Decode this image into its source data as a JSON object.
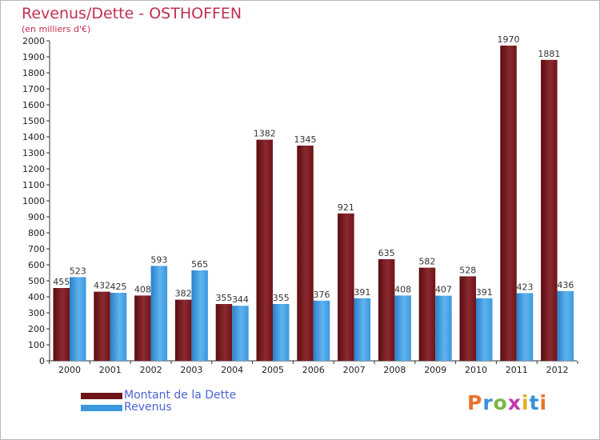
{
  "chart_data": {
    "type": "bar",
    "title": "Revenus/Dette - OSTHOFFEN",
    "subtitle": "(en milliers d'€)",
    "categories": [
      "2000",
      "2001",
      "2002",
      "2003",
      "2004",
      "2005",
      "2006",
      "2007",
      "2008",
      "2009",
      "2010",
      "2011",
      "2012"
    ],
    "series": [
      {
        "name": "Montant de la Dette",
        "color": "#6e1419",
        "values": [
          455,
          432,
          408,
          382,
          355,
          1382,
          1345,
          921,
          635,
          582,
          528,
          1970,
          1881
        ]
      },
      {
        "name": "Revenus",
        "color": "#3c98df",
        "values": [
          523,
          425,
          593,
          565,
          344,
          355,
          376,
          391,
          408,
          407,
          391,
          423,
          436
        ]
      }
    ],
    "ylim": [
      0,
      2000
    ],
    "ytick_step": 100,
    "grid": false,
    "legend": "bottom-left"
  },
  "brand": {
    "text": "Proxiti",
    "colors": [
      "#e8732a",
      "#3a8fd8",
      "#7ab648",
      "#c03ab0",
      "#e0b020",
      "#3a8fd8",
      "#e8732a"
    ]
  }
}
